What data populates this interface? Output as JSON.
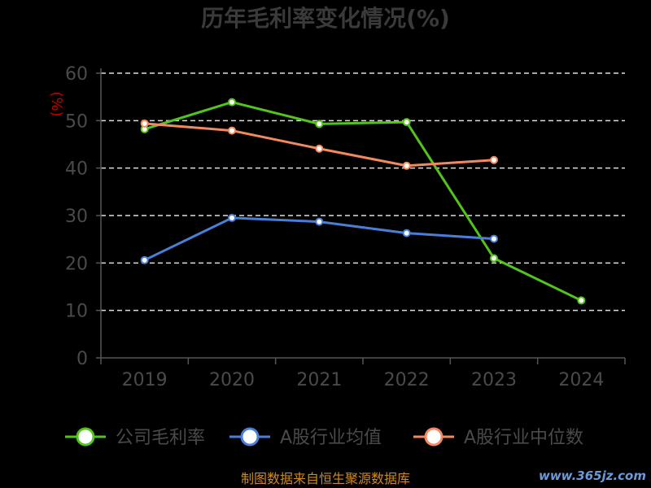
{
  "chart_data": {
    "type": "line",
    "title": "历年毛利率变化情况(%)",
    "ylabel": "(%)",
    "xlabel": "",
    "ylim": [
      0,
      60
    ],
    "yticks": [
      0,
      10,
      20,
      30,
      40,
      50,
      60
    ],
    "categories": [
      "2019",
      "2020",
      "2021",
      "2022",
      "2023",
      "2024"
    ],
    "grid": true,
    "legend_position": "bottom",
    "series": [
      {
        "name": "公司毛利率",
        "color": "#52c41a",
        "values": [
          48.2,
          53.9,
          49.3,
          49.7,
          21.0,
          12.1
        ]
      },
      {
        "name": "A股行业均值",
        "color": "#4a7fd8",
        "values": [
          20.6,
          29.5,
          28.7,
          26.3,
          25.1,
          null
        ]
      },
      {
        "name": "A股行业中位数",
        "color": "#f4895f",
        "values": [
          49.4,
          47.9,
          44.1,
          40.5,
          41.7,
          null
        ]
      }
    ]
  },
  "footer": {
    "source": "制图数据来自恒生聚源数据库"
  },
  "watermark": {
    "text": "www.365jz.com"
  }
}
